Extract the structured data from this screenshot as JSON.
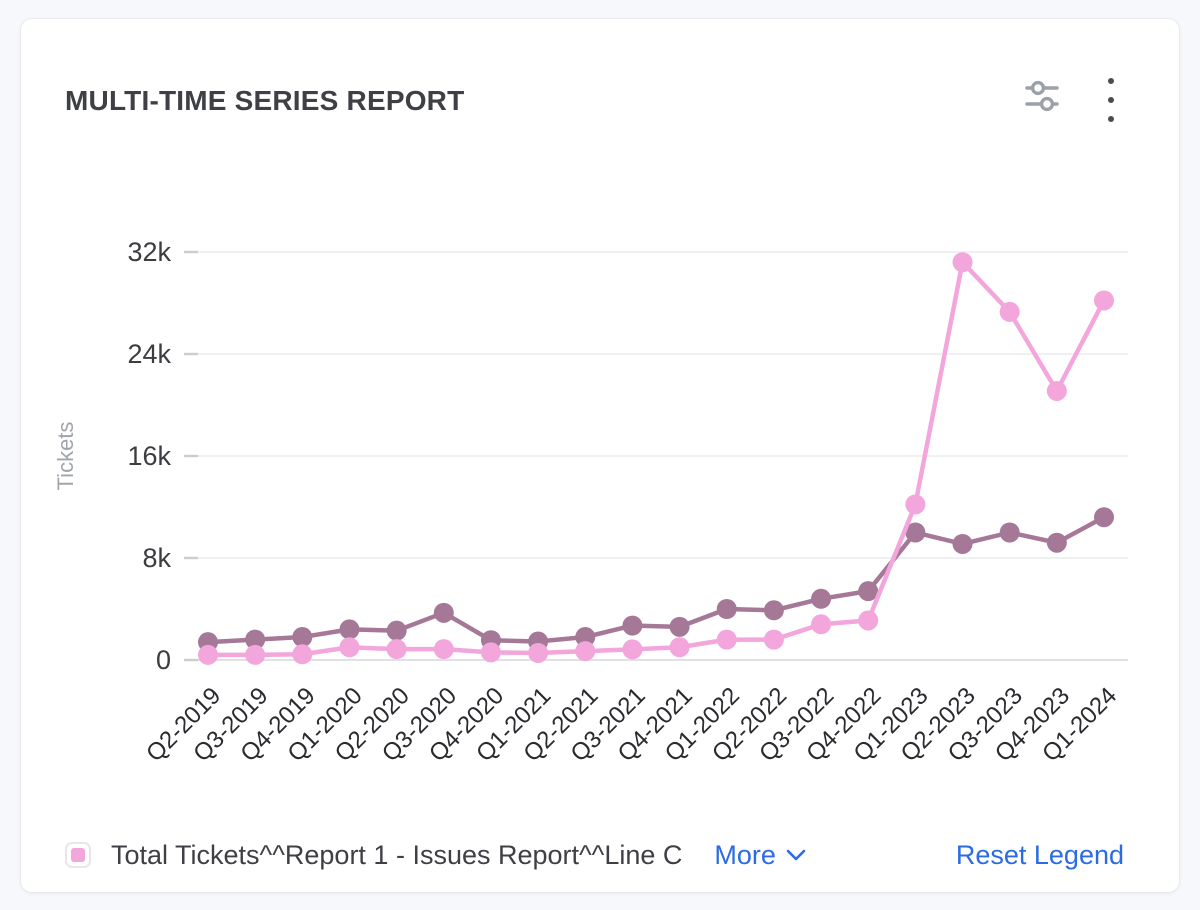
{
  "header": {
    "title": "MULTI-TIME SERIES REPORT"
  },
  "colors": {
    "page_bg": "#f7f8fb",
    "card_bg": "#ffffff",
    "card_border": "#e9eaee",
    "title_text": "#3f4045",
    "grid_line": "#ebebee",
    "zero_line": "#e0e1e4",
    "tick_mark": "#cdced2",
    "tick_text": "#3c3c41",
    "x_tick_text": "#2a2a2f",
    "axis_title_text": "#a0a4ab",
    "legend_text": "#3f4045",
    "link_blue": "#2b6be4",
    "icon_gray": "#9aa1a9",
    "kebab_gray": "#4b4b52",
    "series_pink": "#f2a6dc",
    "series_mauve": "#a67897"
  },
  "chart_data": {
    "type": "line",
    "title": "MULTI-TIME SERIES REPORT",
    "xlabel": "",
    "ylabel": "Tickets",
    "ylim": [
      0,
      32000
    ],
    "y_ticks": [
      "0",
      "8k",
      "16k",
      "24k",
      "32k"
    ],
    "y_tick_values": [
      0,
      8000,
      16000,
      24000,
      32000
    ],
    "grid": true,
    "legend_position": "bottom",
    "categories": [
      "Q2-2019",
      "Q3-2019",
      "Q4-2019",
      "Q1-2020",
      "Q2-2020",
      "Q3-2020",
      "Q4-2020",
      "Q1-2021",
      "Q2-2021",
      "Q3-2021",
      "Q4-2021",
      "Q1-2022",
      "Q2-2022",
      "Q3-2022",
      "Q4-2022",
      "Q1-2023",
      "Q2-2023",
      "Q3-2023",
      "Q4-2023",
      "Q1-2024"
    ],
    "series": [
      {
        "legend_label": "Total Tickets^^Report 1 - Issues Report^^Line C",
        "color": "#f2a6dc",
        "values": [
          400,
          400,
          450,
          1000,
          850,
          850,
          600,
          550,
          700,
          830,
          1000,
          1600,
          1600,
          2800,
          3100,
          12200,
          31200,
          27300,
          21100,
          28200
        ]
      },
      {
        "legend_label": "",
        "color": "#a67897",
        "values": [
          1400,
          1600,
          1800,
          2400,
          2300,
          3700,
          1550,
          1450,
          1800,
          2700,
          2600,
          4000,
          3900,
          4800,
          5400,
          10000,
          9100,
          10000,
          9200,
          11200
        ]
      }
    ]
  },
  "legend": {
    "more_label": "More",
    "reset_label": "Reset Legend"
  }
}
